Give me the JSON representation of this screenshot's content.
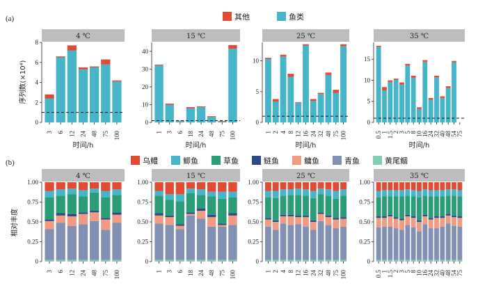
{
  "figure": {
    "panel_a_label": "(a)",
    "panel_b_label": "(b)",
    "top_ylabel": "序列数(×10⁴)",
    "bottom_ylabel": "相对丰度",
    "xlabel": "时间/h"
  },
  "legend_top": [
    {
      "name": "其他",
      "color": "#e34a33"
    },
    {
      "name": "鱼类",
      "color": "#46b4c9"
    }
  ],
  "legend_bottom": [
    {
      "name": "乌鳢",
      "color": "#e34a33"
    },
    {
      "name": "鲫鱼",
      "color": "#46b4c9"
    },
    {
      "name": "草鱼",
      "color": "#2a9d78"
    },
    {
      "name": "鲢鱼",
      "color": "#2e4a86"
    },
    {
      "name": "鳙鱼",
      "color": "#f39a82"
    },
    {
      "name": "青鱼",
      "color": "#8290b4"
    },
    {
      "name": "黄尾鲴",
      "color": "#80cdb7"
    }
  ],
  "chart_data": [
    {
      "type": "bar",
      "panel": "a",
      "strip": "4 ℃",
      "categories": [
        "3",
        "6",
        "12",
        "24",
        "48",
        "75",
        "100"
      ],
      "ylim": [
        0,
        8
      ],
      "yticks": [
        0,
        2,
        4,
        6,
        8
      ],
      "threshold": 1,
      "series": [
        {
          "name": "鱼类",
          "values": [
            2.4,
            6.5,
            7.2,
            5.3,
            5.5,
            5.8,
            4.1
          ]
        },
        {
          "name": "其他",
          "values": [
            0.4,
            0.1,
            0.5,
            0.2,
            0.1,
            0.5,
            0.1
          ]
        }
      ]
    },
    {
      "type": "bar",
      "panel": "a",
      "strip": "15 ℃",
      "categories": [
        "1",
        "3",
        "6",
        "18",
        "24",
        "48",
        "75",
        "100"
      ],
      "ylim": [
        0,
        45
      ],
      "yticks": [
        0,
        10,
        20,
        30,
        40
      ],
      "threshold": 1,
      "series": [
        {
          "name": "鱼类",
          "values": [
            32,
            10,
            0.7,
            8,
            8.5,
            3,
            0.5,
            41.5
          ]
        },
        {
          "name": "其他",
          "values": [
            0.5,
            0.6,
            0.3,
            0.6,
            0.5,
            0.5,
            0.3,
            2
          ]
        }
      ]
    },
    {
      "type": "bar",
      "panel": "a",
      "strip": "25 ℃",
      "categories": [
        "1",
        "2",
        "4",
        "8",
        "12",
        "16",
        "24",
        "32",
        "48",
        "75",
        "100"
      ],
      "ylim": [
        0,
        13
      ],
      "yticks": [
        0,
        5,
        10
      ],
      "threshold": 1,
      "series": [
        {
          "name": "鱼类",
          "values": [
            10.3,
            3.4,
            10.7,
            7.4,
            3.2,
            12.5,
            3.5,
            4.6,
            7.7,
            4.8,
            12.4
          ]
        },
        {
          "name": "其他",
          "values": [
            0.2,
            0.4,
            0.3,
            0.5,
            0.1,
            0.2,
            0.3,
            0.2,
            0.4,
            0.5,
            0.3
          ]
        }
      ]
    },
    {
      "type": "bar",
      "panel": "a",
      "strip": "35 ℃",
      "categories": [
        "0.5",
        "1",
        "1.5",
        "2",
        "3",
        "5",
        "8",
        "10",
        "16",
        "24",
        "32",
        "40",
        "48",
        "54",
        "75"
      ],
      "ylim": [
        0,
        19
      ],
      "yticks": [
        0,
        5,
        10,
        15
      ],
      "threshold": 1,
      "series": [
        {
          "name": "鱼类",
          "values": [
            17.9,
            7.6,
            9.6,
            10.1,
            9,
            13.5,
            10.6,
            3.2,
            14.4,
            5.4,
            10.7,
            5.8,
            8.2,
            14.3,
            0
          ]
        },
        {
          "name": "其他",
          "values": [
            0.3,
            0.8,
            0.4,
            0.3,
            0.5,
            0.4,
            0.5,
            0.4,
            0.4,
            0.4,
            0.4,
            0.4,
            0.4,
            0.3,
            0
          ]
        }
      ]
    },
    {
      "type": "bar",
      "panel": "b",
      "strip": "4 ℃",
      "stacked": true,
      "categories": [
        "3",
        "6",
        "12",
        "24",
        "48",
        "75",
        "100"
      ],
      "ylim": [
        0,
        1
      ],
      "yticks": [
        "0",
        "0.25",
        "0.50",
        "0.75",
        "1.00"
      ],
      "series": [
        {
          "name": "黄尾鲴",
          "values": [
            0.02,
            0.02,
            0.02,
            0.02,
            0.02,
            0.02,
            0.02
          ]
        },
        {
          "name": "青鱼",
          "values": [
            0.39,
            0.47,
            0.43,
            0.45,
            0.49,
            0.38,
            0.47
          ]
        },
        {
          "name": "鳙鱼",
          "values": [
            0.1,
            0.09,
            0.12,
            0.13,
            0.11,
            0.13,
            0.1
          ]
        },
        {
          "name": "鲢鱼",
          "values": [
            0.02,
            0.03,
            0.03,
            0.02,
            0.02,
            0.02,
            0.03
          ]
        },
        {
          "name": "草鱼",
          "values": [
            0.28,
            0.22,
            0.25,
            0.2,
            0.23,
            0.26,
            0.22
          ]
        },
        {
          "name": "鲫鱼",
          "values": [
            0.08,
            0.08,
            0.07,
            0.08,
            0.05,
            0.08,
            0.07
          ]
        },
        {
          "name": "乌鳢",
          "values": [
            0.11,
            0.09,
            0.08,
            0.1,
            0.08,
            0.11,
            0.09
          ]
        }
      ]
    },
    {
      "type": "bar",
      "panel": "b",
      "strip": "15 ℃",
      "stacked": true,
      "categories": [
        "1",
        "3",
        "6",
        "18",
        "24",
        "48",
        "75",
        "100"
      ],
      "ylim": [
        0,
        1
      ],
      "yticks": [
        "0",
        "0.25",
        "0.50",
        "0.75",
        "1.00"
      ],
      "series": [
        {
          "name": "黄尾鲴",
          "values": [
            0.02,
            0.02,
            0.02,
            0.02,
            0.02,
            0.02,
            0.02,
            0.02
          ]
        },
        {
          "name": "青鱼",
          "values": [
            0.46,
            0.44,
            0.39,
            0.56,
            0.52,
            0.42,
            0.42,
            0.44
          ]
        },
        {
          "name": "鳙鱼",
          "values": [
            0.1,
            0.1,
            0.04,
            0.02,
            0.1,
            0.12,
            0.02,
            0.12
          ]
        },
        {
          "name": "鲢鱼",
          "values": [
            0.03,
            0.02,
            0.02,
            0.02,
            0.03,
            0.03,
            0.02,
            0.03
          ]
        },
        {
          "name": "草鱼",
          "values": [
            0.22,
            0.2,
            0.29,
            0.24,
            0.17,
            0.23,
            0.31,
            0.2
          ]
        },
        {
          "name": "鲫鱼",
          "values": [
            0.06,
            0.07,
            0.09,
            0.06,
            0.07,
            0.06,
            0.09,
            0.07
          ]
        },
        {
          "name": "乌鳢",
          "values": [
            0.11,
            0.15,
            0.15,
            0.08,
            0.09,
            0.12,
            0.12,
            0.12
          ]
        }
      ]
    },
    {
      "type": "bar",
      "panel": "b",
      "strip": "25 ℃",
      "stacked": true,
      "categories": [
        "1",
        "2",
        "4",
        "8",
        "12",
        "16",
        "24",
        "32",
        "48",
        "75",
        "100"
      ],
      "ylim": [
        0,
        1
      ],
      "yticks": [
        "0",
        "0.25",
        "0.50",
        "0.75",
        "1.00"
      ],
      "series": [
        {
          "name": "黄尾鲴",
          "values": [
            0.02,
            0.02,
            0.02,
            0.02,
            0.02,
            0.02,
            0.02,
            0.02,
            0.02,
            0.02,
            0.02
          ]
        },
        {
          "name": "青鱼",
          "values": [
            0.42,
            0.38,
            0.46,
            0.44,
            0.45,
            0.42,
            0.38,
            0.49,
            0.44,
            0.4,
            0.42
          ]
        },
        {
          "name": "鳙鱼",
          "values": [
            0.09,
            0.1,
            0.09,
            0.11,
            0.09,
            0.12,
            0.1,
            0.09,
            0.1,
            0.11,
            0.1
          ]
        },
        {
          "name": "鲢鱼",
          "values": [
            0.02,
            0.02,
            0.02,
            0.02,
            0.02,
            0.02,
            0.02,
            0.02,
            0.02,
            0.02,
            0.02
          ]
        },
        {
          "name": "草鱼",
          "values": [
            0.26,
            0.28,
            0.24,
            0.25,
            0.26,
            0.25,
            0.28,
            0.23,
            0.25,
            0.24,
            0.27
          ]
        },
        {
          "name": "鲫鱼",
          "values": [
            0.08,
            0.09,
            0.08,
            0.07,
            0.08,
            0.08,
            0.09,
            0.07,
            0.08,
            0.1,
            0.08
          ]
        },
        {
          "name": "乌鳢",
          "values": [
            0.11,
            0.11,
            0.09,
            0.09,
            0.08,
            0.09,
            0.11,
            0.08,
            0.09,
            0.11,
            0.09
          ]
        }
      ]
    },
    {
      "type": "bar",
      "panel": "b",
      "strip": "35 ℃",
      "stacked": true,
      "categories": [
        "0.5",
        "1",
        "1.5",
        "2",
        "3",
        "5",
        "8",
        "10",
        "16",
        "24",
        "32",
        "40",
        "48",
        "54",
        "75"
      ],
      "ylim": [
        0,
        1
      ],
      "yticks": [
        "0",
        "0.25",
        "0.50",
        "0.75",
        "1.00"
      ],
      "series": [
        {
          "name": "黄尾鲴",
          "values": [
            0.02,
            0.02,
            0.02,
            0.02,
            0.02,
            0.02,
            0.02,
            0.02,
            0.02,
            0.02,
            0.02,
            0.02,
            0.02,
            0.02,
            0.02
          ]
        },
        {
          "name": "青鱼",
          "values": [
            0.41,
            0.42,
            0.42,
            0.4,
            0.38,
            0.44,
            0.41,
            0.36,
            0.45,
            0.4,
            0.4,
            0.42,
            0.46,
            0.43,
            0.42
          ]
        },
        {
          "name": "鳙鱼",
          "values": [
            0.12,
            0.11,
            0.13,
            0.12,
            0.12,
            0.11,
            0.12,
            0.12,
            0.1,
            0.11,
            0.13,
            0.11,
            0.1,
            0.11,
            0.11
          ]
        },
        {
          "name": "鲢鱼",
          "values": [
            0.02,
            0.02,
            0.02,
            0.02,
            0.02,
            0.02,
            0.02,
            0.02,
            0.02,
            0.02,
            0.02,
            0.02,
            0.02,
            0.02,
            0.02
          ]
        },
        {
          "name": "草鱼",
          "values": [
            0.24,
            0.25,
            0.23,
            0.26,
            0.28,
            0.24,
            0.25,
            0.29,
            0.24,
            0.27,
            0.25,
            0.25,
            0.23,
            0.25,
            0.25
          ]
        },
        {
          "name": "鲫鱼",
          "values": [
            0.08,
            0.08,
            0.08,
            0.08,
            0.08,
            0.08,
            0.08,
            0.08,
            0.08,
            0.08,
            0.08,
            0.08,
            0.08,
            0.08,
            0.08
          ]
        },
        {
          "name": "乌鳢",
          "values": [
            0.11,
            0.1,
            0.1,
            0.1,
            0.1,
            0.09,
            0.1,
            0.11,
            0.09,
            0.1,
            0.1,
            0.1,
            0.09,
            0.09,
            0.1
          ]
        }
      ]
    }
  ]
}
